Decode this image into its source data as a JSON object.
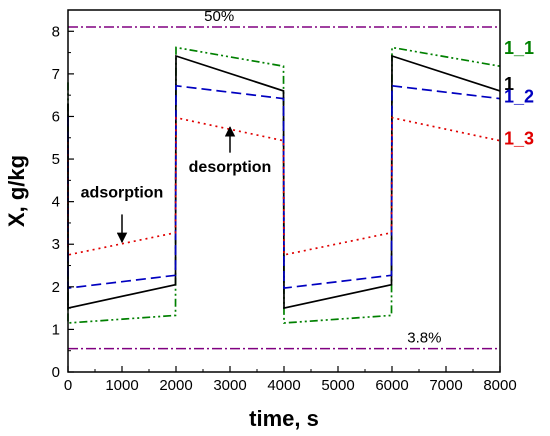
{
  "chart_data": {
    "type": "line",
    "xlabel": "time, s",
    "ylabel": "X, g/kg",
    "xlim": [
      0,
      8000
    ],
    "ylim": [
      0,
      8.5
    ],
    "x_ticks": [
      0,
      1000,
      2000,
      3000,
      4000,
      5000,
      6000,
      7000,
      8000
    ],
    "y_ticks": [
      0,
      1,
      2,
      3,
      4,
      5,
      6,
      7,
      8
    ],
    "grid": false,
    "series": [
      {
        "name": "1_1",
        "color": "#008000",
        "dash": "dash-dot-dot",
        "points": [
          [
            0,
            6.8
          ],
          [
            0,
            1.15
          ],
          [
            1990,
            1.33
          ],
          [
            2000,
            7.62
          ],
          [
            3990,
            7.18
          ],
          [
            4000,
            1.15
          ],
          [
            5990,
            1.33
          ],
          [
            6000,
            7.62
          ],
          [
            8000,
            7.18
          ]
        ]
      },
      {
        "name": "1",
        "color": "#000000",
        "dash": "solid",
        "points": [
          [
            0,
            6.3
          ],
          [
            0,
            1.5
          ],
          [
            1990,
            2.05
          ],
          [
            2000,
            7.42
          ],
          [
            3990,
            6.6
          ],
          [
            4000,
            1.5
          ],
          [
            5990,
            2.05
          ],
          [
            6000,
            7.42
          ],
          [
            8000,
            6.6
          ]
        ]
      },
      {
        "name": "1_2",
        "color": "#0000c0",
        "dash": "dashed",
        "points": [
          [
            0,
            6.0
          ],
          [
            0,
            1.97
          ],
          [
            1990,
            2.27
          ],
          [
            2000,
            6.72
          ],
          [
            3990,
            6.42
          ],
          [
            4000,
            1.97
          ],
          [
            5990,
            2.27
          ],
          [
            6000,
            6.72
          ],
          [
            8000,
            6.42
          ]
        ]
      },
      {
        "name": "1_3",
        "color": "#e00000",
        "dash": "dotted",
        "points": [
          [
            0,
            5.4
          ],
          [
            0,
            2.75
          ],
          [
            1990,
            3.27
          ],
          [
            2000,
            5.97
          ],
          [
            3990,
            5.43
          ],
          [
            4000,
            2.75
          ],
          [
            5990,
            3.27
          ],
          [
            6000,
            5.97
          ],
          [
            8000,
            5.43
          ]
        ]
      }
    ],
    "reference_lines": [
      {
        "label": "50%",
        "y": 8.1,
        "color": "#800080",
        "label_x": 2800
      },
      {
        "label": "3.8%",
        "y": 0.55,
        "color": "#800080",
        "label_x": 6600
      }
    ],
    "annotations": [
      {
        "text": "adsorption",
        "text_x": 1000,
        "text_y": 4.1,
        "arrow_from": [
          1000,
          3.7
        ],
        "arrow_to": [
          1000,
          3.05
        ]
      },
      {
        "text": "desorption",
        "text_x": 3000,
        "text_y": 4.7,
        "arrow_from": [
          3000,
          5.15
        ],
        "arrow_to": [
          3000,
          5.75
        ]
      }
    ],
    "legend_position": "right"
  }
}
